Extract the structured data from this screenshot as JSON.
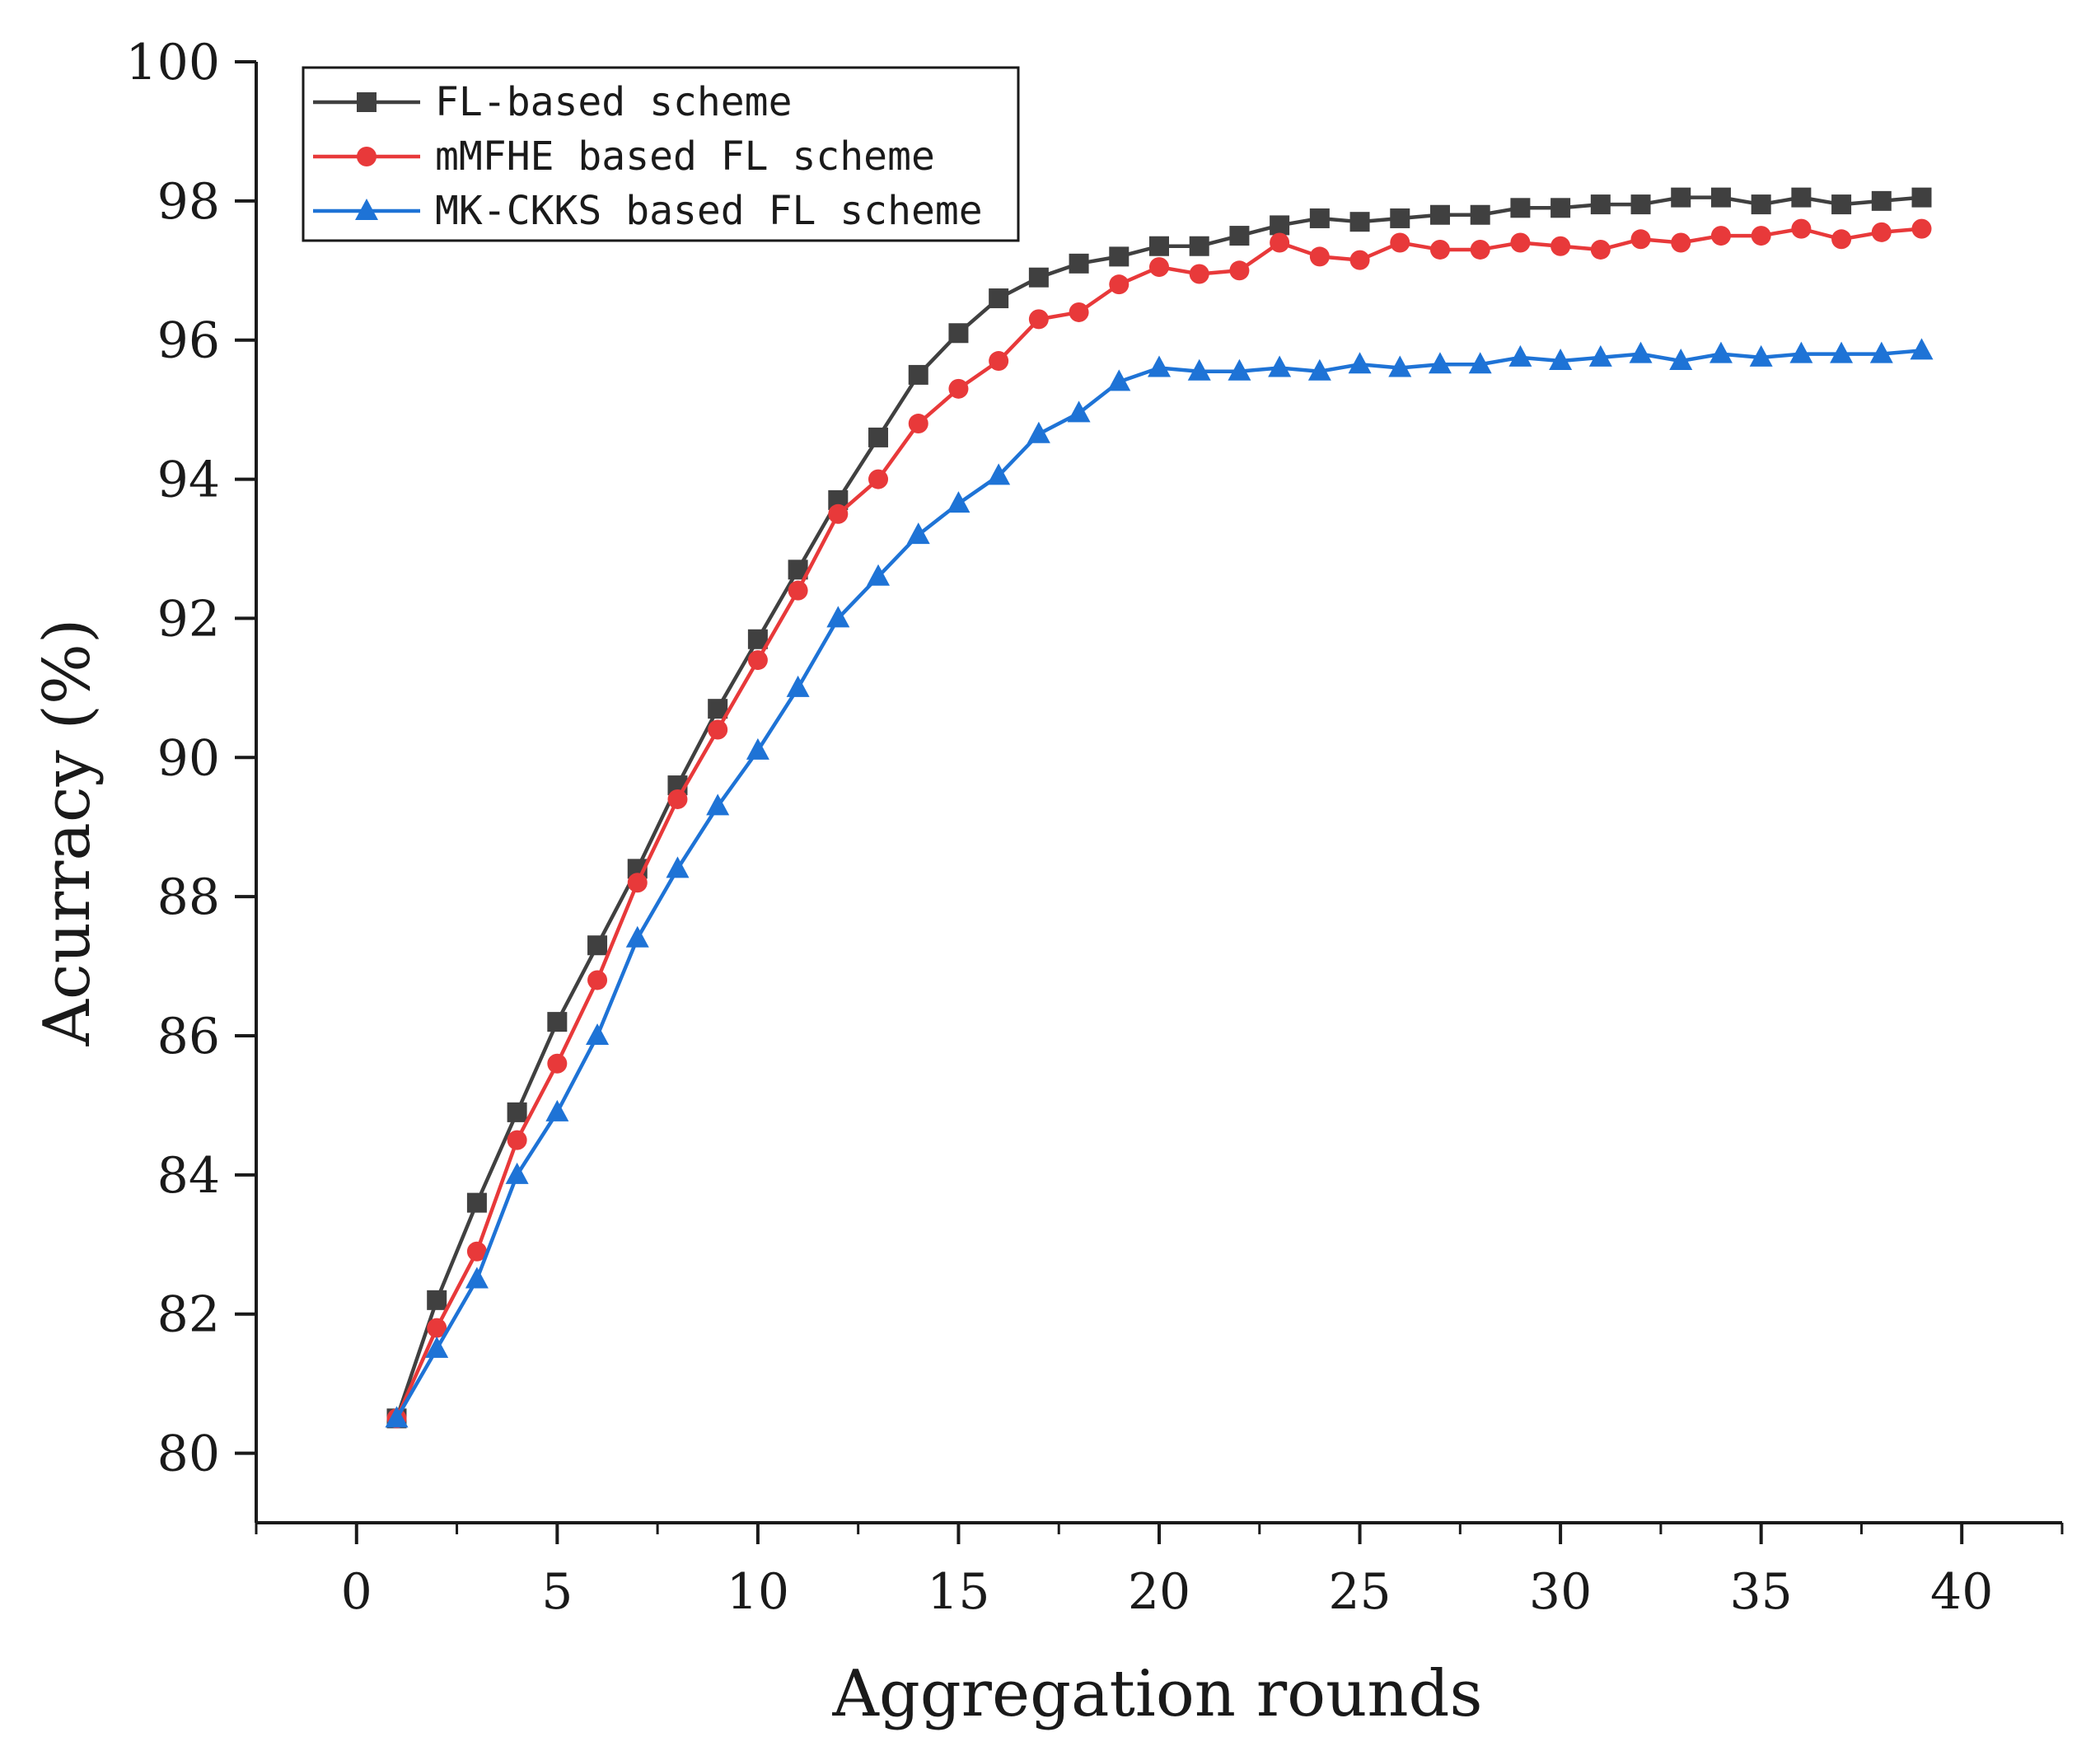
{
  "chart_data": {
    "type": "line",
    "title": "",
    "xlabel": "Aggregation rounds",
    "ylabel": "Acurracy (%)",
    "xlim": [
      -2.5,
      42.5
    ],
    "ylim": [
      79,
      100
    ],
    "xticks": [
      0,
      5,
      10,
      15,
      20,
      25,
      30,
      35,
      40
    ],
    "yticks": [
      80,
      82,
      84,
      86,
      88,
      90,
      92,
      94,
      96,
      98,
      100
    ],
    "grid": false,
    "legend_position": "top-left",
    "x": [
      1,
      2,
      3,
      4,
      5,
      6,
      7,
      8,
      9,
      10,
      11,
      12,
      13,
      14,
      15,
      16,
      17,
      18,
      19,
      20,
      21,
      22,
      23,
      24,
      25,
      26,
      27,
      28,
      29,
      30,
      31,
      32,
      33,
      34,
      35,
      36,
      37,
      38,
      39
    ],
    "series": [
      {
        "name": "FL-based scheme",
        "color": "#404040",
        "marker": "square",
        "values": [
          80.5,
          82.2,
          83.6,
          84.9,
          86.2,
          87.3,
          88.4,
          89.6,
          90.7,
          91.7,
          92.7,
          93.7,
          94.6,
          95.5,
          96.1,
          96.6,
          96.9,
          97.1,
          97.2,
          97.35,
          97.35,
          97.5,
          97.65,
          97.75,
          97.7,
          97.75,
          97.8,
          97.8,
          97.9,
          97.9,
          97.95,
          97.95,
          98.05,
          98.05,
          97.95,
          98.05,
          97.95,
          98.0,
          98.05
        ]
      },
      {
        "name": "mMFHE based FL scheme",
        "color": "#e8393a",
        "marker": "circle",
        "values": [
          80.5,
          81.8,
          82.9,
          84.5,
          85.6,
          86.8,
          88.2,
          89.4,
          90.4,
          91.4,
          92.4,
          93.5,
          94.0,
          94.8,
          95.3,
          95.7,
          96.3,
          96.4,
          96.8,
          97.05,
          96.95,
          97.0,
          97.4,
          97.2,
          97.15,
          97.4,
          97.3,
          97.3,
          97.4,
          97.35,
          97.3,
          97.45,
          97.4,
          97.5,
          97.5,
          97.6,
          97.45,
          97.55,
          97.6
        ]
      },
      {
        "name": "MK-CKKS based FL scheme",
        "color": "#1e73d6",
        "marker": "triangle",
        "values": [
          80.5,
          81.5,
          82.5,
          84.0,
          84.9,
          86.0,
          87.4,
          88.4,
          89.3,
          90.1,
          91.0,
          92.0,
          92.6,
          93.2,
          93.65,
          94.05,
          94.65,
          94.95,
          95.4,
          95.6,
          95.55,
          95.55,
          95.6,
          95.55,
          95.65,
          95.6,
          95.65,
          95.65,
          95.75,
          95.7,
          95.75,
          95.8,
          95.7,
          95.8,
          95.75,
          95.8,
          95.8,
          95.8,
          95.85
        ]
      }
    ]
  }
}
